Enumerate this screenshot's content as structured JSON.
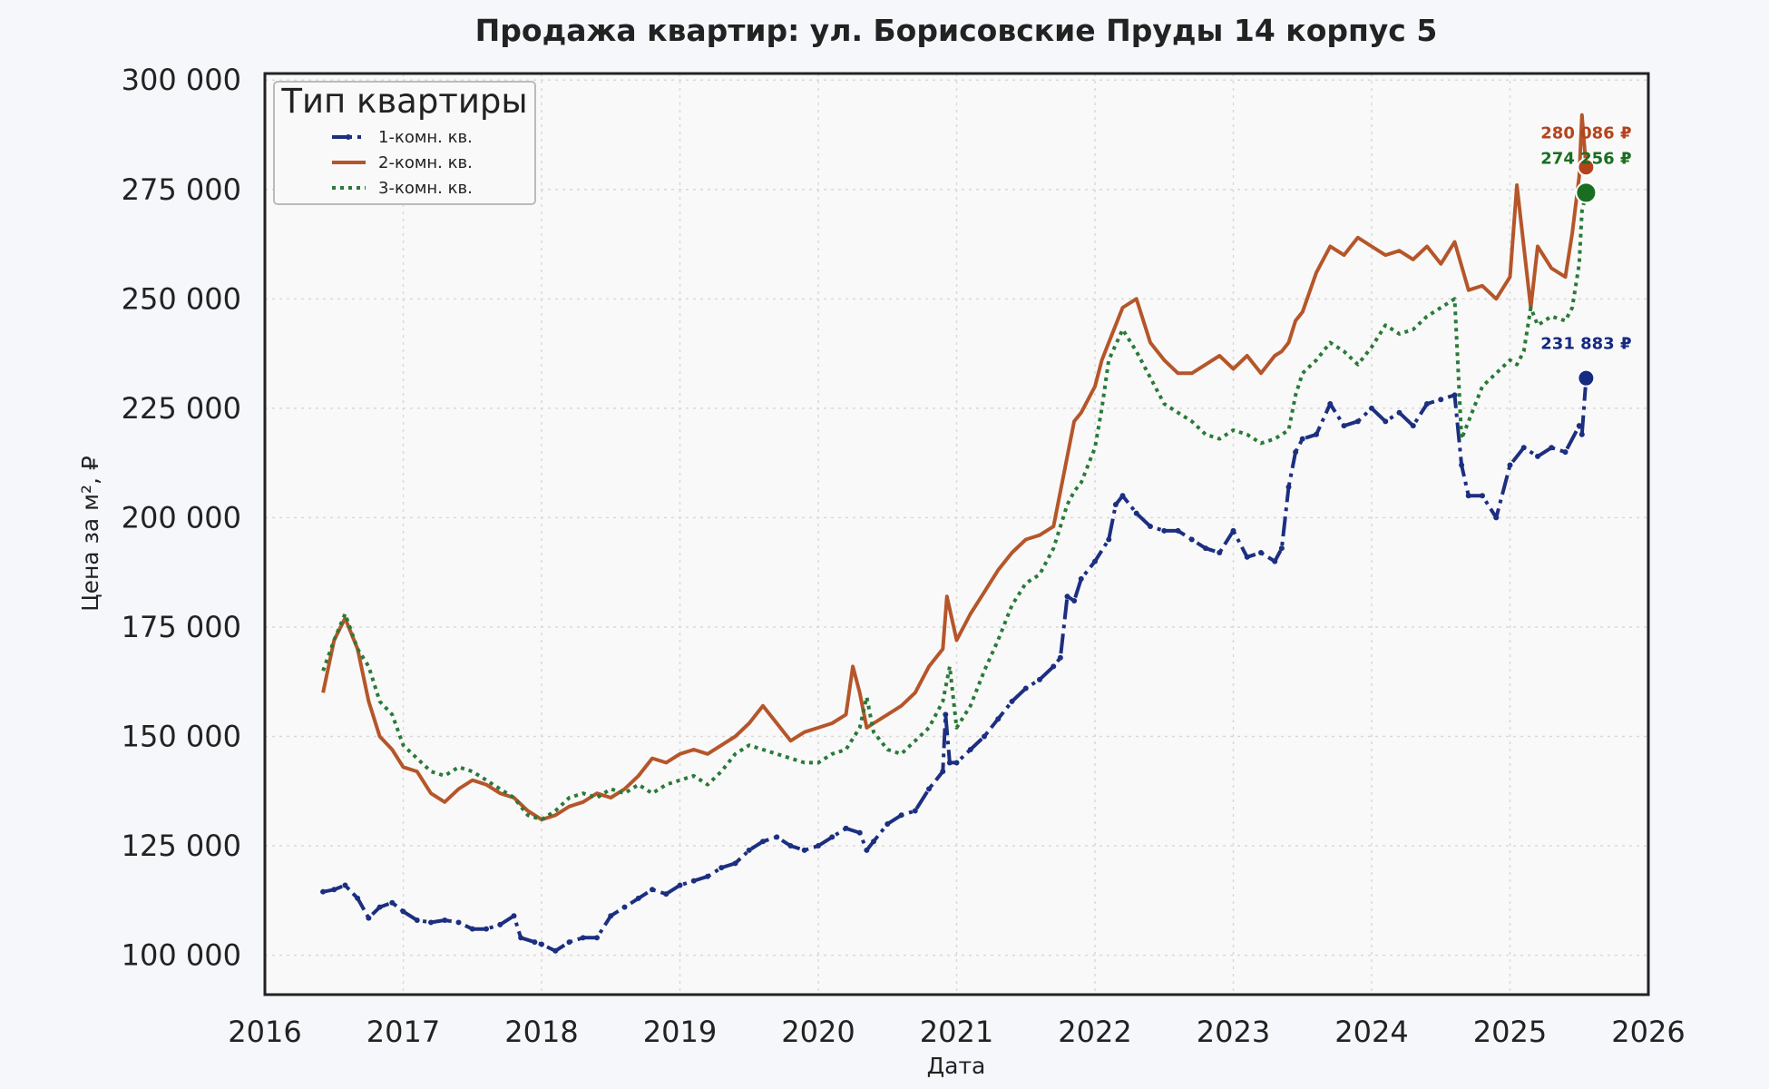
{
  "chart_data": {
    "type": "line",
    "title": "Продажа квартир: ул. Борисовские Пруды 14 корпус 5",
    "xlabel": "Дата",
    "ylabel": "Цена за м², ₽",
    "xlim": [
      2016.0,
      2026.0
    ],
    "ylim": [
      91000,
      301500
    ],
    "x_ticks": [
      {
        "value": 2016,
        "label": "2016"
      },
      {
        "value": 2017,
        "label": "2017"
      },
      {
        "value": 2018,
        "label": "2018"
      },
      {
        "value": 2019,
        "label": "2019"
      },
      {
        "value": 2020,
        "label": "2020"
      },
      {
        "value": 2021,
        "label": "2021"
      },
      {
        "value": 2022,
        "label": "2022"
      },
      {
        "value": 2023,
        "label": "2023"
      },
      {
        "value": 2024,
        "label": "2024"
      },
      {
        "value": 2025,
        "label": "2025"
      },
      {
        "value": 2026,
        "label": "2026"
      }
    ],
    "y_ticks": [
      {
        "value": 100000,
        "label": "100 000"
      },
      {
        "value": 125000,
        "label": "125 000"
      },
      {
        "value": 150000,
        "label": "150 000"
      },
      {
        "value": 175000,
        "label": "175 000"
      },
      {
        "value": 200000,
        "label": "200 000"
      },
      {
        "value": 225000,
        "label": "225 000"
      },
      {
        "value": 250000,
        "label": "250 000"
      },
      {
        "value": 275000,
        "label": "275 000"
      },
      {
        "value": 300000,
        "label": "300 000"
      }
    ],
    "grid": true,
    "legend": {
      "title": "Тип квартиры",
      "placement": "top-left"
    },
    "series": [
      {
        "name": "1-комн. кв.",
        "color": "#1c2f80",
        "style": "dash-dot-marker",
        "x": [
          2016.42,
          2016.5,
          2016.58,
          2016.67,
          2016.75,
          2016.83,
          2016.92,
          2017.0,
          2017.1,
          2017.2,
          2017.3,
          2017.4,
          2017.5,
          2017.6,
          2017.7,
          2017.8,
          2017.85,
          2017.95,
          2018.0,
          2018.1,
          2018.2,
          2018.3,
          2018.4,
          2018.5,
          2018.6,
          2018.7,
          2018.8,
          2018.9,
          2019.0,
          2019.1,
          2019.2,
          2019.3,
          2019.4,
          2019.5,
          2019.6,
          2019.7,
          2019.8,
          2019.9,
          2020.0,
          2020.1,
          2020.2,
          2020.3,
          2020.35,
          2020.4,
          2020.5,
          2020.6,
          2020.7,
          2020.8,
          2020.9,
          2020.92,
          2020.95,
          2021.0,
          2021.1,
          2021.2,
          2021.3,
          2021.4,
          2021.5,
          2021.6,
          2021.7,
          2021.75,
          2021.8,
          2021.85,
          2021.9,
          2022.0,
          2022.1,
          2022.15,
          2022.2,
          2022.3,
          2022.4,
          2022.5,
          2022.6,
          2022.7,
          2022.8,
          2022.9,
          2023.0,
          2023.1,
          2023.2,
          2023.3,
          2023.35,
          2023.4,
          2023.45,
          2023.5,
          2023.6,
          2023.7,
          2023.8,
          2023.9,
          2024.0,
          2024.1,
          2024.2,
          2024.3,
          2024.4,
          2024.5,
          2024.6,
          2024.65,
          2024.7,
          2024.8,
          2024.9,
          2025.0,
          2025.1,
          2025.2,
          2025.3,
          2025.4,
          2025.5,
          2025.52,
          2025.55
        ],
        "y": [
          114500,
          115000,
          116000,
          113000,
          108500,
          111000,
          112000,
          110000,
          108000,
          107500,
          108000,
          107500,
          106000,
          106000,
          107000,
          109000,
          104000,
          103000,
          102500,
          101000,
          103000,
          104000,
          104000,
          109000,
          111000,
          113000,
          115000,
          114000,
          116000,
          117000,
          118000,
          120000,
          121000,
          124000,
          126000,
          127000,
          125000,
          124000,
          125000,
          127000,
          129000,
          128000,
          124000,
          126000,
          130000,
          132000,
          133000,
          138000,
          142000,
          155000,
          144000,
          144000,
          147000,
          150000,
          154000,
          158000,
          161000,
          163000,
          166000,
          168000,
          182000,
          181000,
          186000,
          190000,
          195000,
          203000,
          205000,
          201000,
          198000,
          197000,
          197000,
          195000,
          193000,
          192000,
          197000,
          191000,
          192000,
          190000,
          193000,
          207000,
          215000,
          218000,
          219000,
          226000,
          221000,
          222000,
          225000,
          222000,
          224000,
          221000,
          226000,
          227000,
          228000,
          212000,
          205000,
          205000,
          200000,
          212000,
          216000,
          214000,
          216000,
          215000,
          221000,
          219000,
          231883
        ]
      },
      {
        "name": "2-комн. кв.",
        "color": "#b5562a",
        "style": "solid",
        "x": [
          2016.42,
          2016.5,
          2016.58,
          2016.67,
          2016.75,
          2016.83,
          2016.92,
          2017.0,
          2017.1,
          2017.2,
          2017.3,
          2017.4,
          2017.5,
          2017.6,
          2017.7,
          2017.8,
          2017.9,
          2018.0,
          2018.1,
          2018.2,
          2018.3,
          2018.4,
          2018.5,
          2018.6,
          2018.7,
          2018.8,
          2018.9,
          2019.0,
          2019.1,
          2019.2,
          2019.3,
          2019.4,
          2019.5,
          2019.6,
          2019.7,
          2019.8,
          2019.9,
          2020.0,
          2020.1,
          2020.2,
          2020.25,
          2020.3,
          2020.35,
          2020.4,
          2020.5,
          2020.6,
          2020.7,
          2020.8,
          2020.9,
          2020.93,
          2021.0,
          2021.1,
          2021.2,
          2021.3,
          2021.4,
          2021.5,
          2021.6,
          2021.7,
          2021.8,
          2021.85,
          2021.9,
          2022.0,
          2022.05,
          2022.1,
          2022.2,
          2022.3,
          2022.4,
          2022.5,
          2022.6,
          2022.7,
          2022.8,
          2022.9,
          2023.0,
          2023.1,
          2023.2,
          2023.3,
          2023.35,
          2023.4,
          2023.45,
          2023.5,
          2023.6,
          2023.7,
          2023.8,
          2023.9,
          2024.0,
          2024.1,
          2024.2,
          2024.3,
          2024.4,
          2024.5,
          2024.6,
          2024.7,
          2024.8,
          2024.9,
          2025.0,
          2025.05,
          2025.1,
          2025.15,
          2025.2,
          2025.3,
          2025.4,
          2025.45,
          2025.5,
          2025.52,
          2025.55
        ],
        "y": [
          160000,
          172000,
          177000,
          170000,
          158000,
          150000,
          147000,
          143000,
          142000,
          137000,
          135000,
          138000,
          140000,
          139000,
          137000,
          136000,
          133000,
          131000,
          132000,
          134000,
          135000,
          137000,
          136000,
          138000,
          141000,
          145000,
          144000,
          146000,
          147000,
          146000,
          148000,
          150000,
          153000,
          157000,
          153000,
          149000,
          151000,
          152000,
          153000,
          155000,
          166000,
          160000,
          152000,
          153000,
          155000,
          157000,
          160000,
          166000,
          170000,
          182000,
          172000,
          178000,
          183000,
          188000,
          192000,
          195000,
          196000,
          198000,
          214000,
          222000,
          224000,
          230000,
          236000,
          240000,
          248000,
          250000,
          240000,
          236000,
          233000,
          233000,
          235000,
          237000,
          234000,
          237000,
          233000,
          237000,
          238000,
          240000,
          245000,
          247000,
          256000,
          262000,
          260000,
          264000,
          262000,
          260000,
          261000,
          259000,
          262000,
          258000,
          263000,
          252000,
          253000,
          250000,
          255000,
          276000,
          262000,
          248000,
          262000,
          257000,
          255000,
          265000,
          278000,
          292000,
          280086
        ]
      },
      {
        "name": "3-комн. кв.",
        "color": "#2a7a38",
        "style": "dotted",
        "x": [
          2016.42,
          2016.5,
          2016.58,
          2016.67,
          2016.75,
          2016.83,
          2016.92,
          2017.0,
          2017.1,
          2017.2,
          2017.3,
          2017.4,
          2017.5,
          2017.6,
          2017.7,
          2017.8,
          2017.9,
          2018.0,
          2018.1,
          2018.2,
          2018.3,
          2018.4,
          2018.5,
          2018.6,
          2018.7,
          2018.8,
          2018.9,
          2019.0,
          2019.1,
          2019.2,
          2019.3,
          2019.4,
          2019.5,
          2019.6,
          2019.7,
          2019.8,
          2019.9,
          2020.0,
          2020.1,
          2020.2,
          2020.3,
          2020.35,
          2020.4,
          2020.5,
          2020.6,
          2020.7,
          2020.8,
          2020.9,
          2020.95,
          2021.0,
          2021.1,
          2021.2,
          2021.3,
          2021.4,
          2021.5,
          2021.6,
          2021.7,
          2021.8,
          2021.85,
          2021.9,
          2022.0,
          2022.05,
          2022.1,
          2022.2,
          2022.3,
          2022.4,
          2022.5,
          2022.6,
          2022.7,
          2022.8,
          2022.9,
          2023.0,
          2023.1,
          2023.2,
          2023.3,
          2023.35,
          2023.4,
          2023.45,
          2023.5,
          2023.6,
          2023.7,
          2023.8,
          2023.9,
          2024.0,
          2024.1,
          2024.2,
          2024.3,
          2024.4,
          2024.5,
          2024.6,
          2024.65,
          2024.7,
          2024.8,
          2024.9,
          2025.0,
          2025.05,
          2025.1,
          2025.15,
          2025.2,
          2025.3,
          2025.4,
          2025.45,
          2025.5,
          2025.52,
          2025.55
        ],
        "y": [
          165000,
          172000,
          178000,
          170000,
          166000,
          158000,
          155000,
          148000,
          145000,
          142000,
          141000,
          143000,
          142000,
          140000,
          138000,
          136000,
          132000,
          131000,
          133000,
          136000,
          137000,
          136000,
          138000,
          137000,
          139000,
          137000,
          139000,
          140000,
          141000,
          139000,
          142000,
          146000,
          148000,
          147000,
          146000,
          145000,
          144000,
          144000,
          146000,
          147000,
          152000,
          159000,
          151000,
          147000,
          146000,
          149000,
          152000,
          158000,
          166000,
          152000,
          157000,
          165000,
          172000,
          180000,
          185000,
          187000,
          193000,
          203000,
          206000,
          208000,
          216000,
          225000,
          236000,
          243000,
          238000,
          232000,
          226000,
          224000,
          222000,
          219000,
          218000,
          220000,
          219000,
          217000,
          218000,
          219000,
          220000,
          228000,
          233000,
          236000,
          240000,
          238000,
          235000,
          239000,
          244000,
          242000,
          243000,
          246000,
          248000,
          250000,
          218000,
          222000,
          230000,
          233000,
          236000,
          235000,
          238000,
          248000,
          244000,
          246000,
          245000,
          248000,
          258000,
          270000,
          274256
        ]
      }
    ],
    "end_labels": [
      {
        "series": "2-комн. кв.",
        "x": 2025.55,
        "y": 280086,
        "text": "280 086 ₽",
        "color": "#b5441d"
      },
      {
        "series": "3-комн. кв.",
        "x": 2025.55,
        "y": 274256,
        "text": "274 256 ₽",
        "color": "#1a6e20"
      },
      {
        "series": "1-комн. кв.",
        "x": 2025.55,
        "y": 231883,
        "text": "231 883 ₽",
        "color": "#152a82"
      }
    ]
  }
}
